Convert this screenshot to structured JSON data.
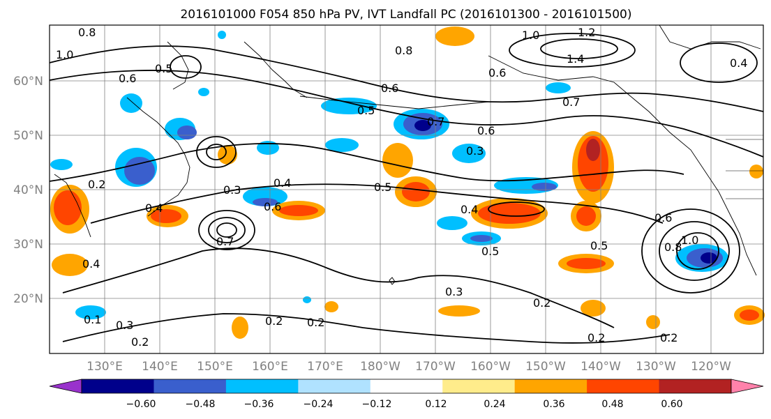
{
  "title": "2016101000 F054 850 hPa PV, IVT Landfall PC (2016101300 - 2016101500)",
  "lat_labels": [
    "60°N",
    "50°N",
    "40°N",
    "30°N",
    "20°N"
  ],
  "lon_labels": [
    "130°E",
    "140°E",
    "150°E",
    "160°E",
    "170°E",
    "180°W",
    "170°W",
    "160°W",
    "150°W",
    "140°W",
    "130°W",
    "120°W"
  ],
  "colorbar": {
    "ticks": [
      "−0.60",
      "−0.48",
      "−0.36",
      "−0.24",
      "−0.12",
      "0.12",
      "0.24",
      "0.36",
      "0.48",
      "0.60"
    ],
    "colors": [
      "#9932CC",
      "#00008B",
      "#3A5FCD",
      "#00BFFF",
      "#B0E2FF",
      "#FFFFFF",
      "#FFEC8B",
      "#FFA500",
      "#FF4500",
      "#B22222",
      "#FF82AB"
    ]
  },
  "contour_labels": [
    "0.8",
    "1.0",
    "0.5",
    "0.6",
    "0.8",
    "1.0",
    "1.2",
    "1.4",
    "0.4",
    "0.6",
    "0.7",
    "0.6",
    "0.5",
    "0.7",
    "0.6",
    "0.3",
    "0.2",
    "0.3",
    "0.4",
    "0.5",
    "0.6",
    "0.4",
    "0.7",
    "0.4",
    "0.5",
    "0.5",
    "0.6",
    "0.8",
    "1.0",
    "0.3",
    "0.2",
    "0.2",
    "0.2",
    "0.3",
    "0.2",
    "0.2",
    "0.4",
    "0.2",
    "0.1"
  ],
  "colors": {
    "contour": "#000000",
    "grid": "#808080",
    "coast": "#000000"
  }
}
